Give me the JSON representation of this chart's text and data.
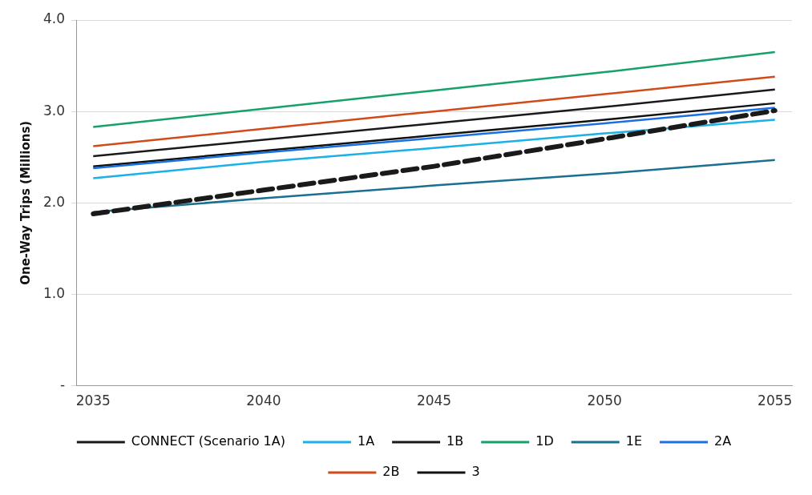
{
  "chart_data": {
    "type": "line",
    "ylabel": "One-Way Trips (Millions)",
    "x": [
      2035,
      2040,
      2045,
      2050,
      2055
    ],
    "xlim": [
      2034.5,
      2055.5
    ],
    "xticks": [
      2035,
      2040,
      2045,
      2050,
      2055
    ],
    "ylim": [
      0,
      4
    ],
    "yticks": [
      {
        "value": 0,
        "label": "-"
      },
      {
        "value": 1,
        "label": "1.0"
      },
      {
        "value": 2,
        "label": "2.0"
      },
      {
        "value": 3,
        "label": "3.0"
      },
      {
        "value": 4,
        "label": "4.0"
      }
    ],
    "grid": "y",
    "legend": "bottom",
    "marker": "none",
    "series": [
      {
        "name": "CONNECT (Scenario 1A)",
        "color": "#1a1a1a",
        "line_style": "dashed",
        "values": [
          1.88,
          2.14,
          2.4,
          2.7,
          3.01
        ]
      },
      {
        "name": "1A",
        "color": "#1ab0e8",
        "values": [
          2.27,
          2.45,
          2.6,
          2.76,
          2.91
        ]
      },
      {
        "name": "1B",
        "color": "#1a1a1a",
        "values": [
          2.51,
          2.69,
          2.87,
          3.05,
          3.24
        ]
      },
      {
        "name": "1D",
        "color": "#16a06a",
        "values": [
          2.83,
          3.03,
          3.23,
          3.43,
          3.65
        ]
      },
      {
        "name": "1E",
        "color": "#1a7090",
        "values": [
          1.9,
          2.05,
          2.19,
          2.32,
          2.47
        ]
      },
      {
        "name": "2A",
        "color": "#1a70e0",
        "values": [
          2.38,
          2.55,
          2.71,
          2.87,
          3.04
        ]
      },
      {
        "name": "2B",
        "color": "#d04a1a",
        "values": [
          2.62,
          2.81,
          3.0,
          3.19,
          3.38
        ]
      },
      {
        "name": "3",
        "color": "#111111",
        "values": [
          2.4,
          2.57,
          2.74,
          2.91,
          3.09
        ]
      }
    ]
  }
}
